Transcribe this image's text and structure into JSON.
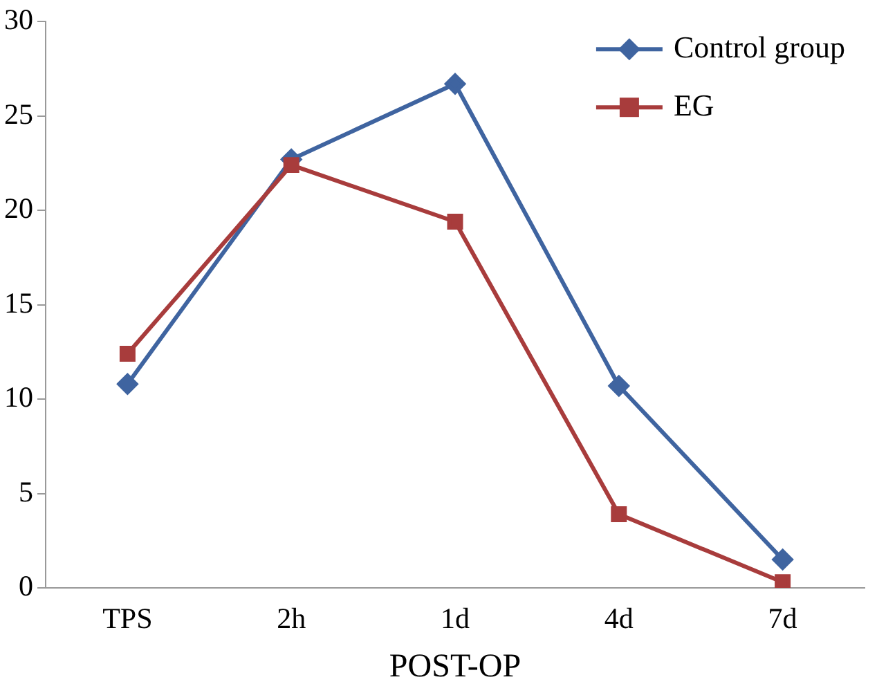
{
  "chart_data": {
    "type": "line",
    "xlabel": "POST-OP",
    "categories": [
      "TPS",
      "2h",
      "1d",
      "4d",
      "7d"
    ],
    "series": [
      {
        "name": "Control group",
        "color": "#3f64a0",
        "marker": "diamond",
        "values": [
          10.8,
          22.7,
          26.7,
          10.7,
          1.5
        ]
      },
      {
        "name": "EG",
        "color": "#a83c3c",
        "marker": "square",
        "values": [
          12.4,
          22.4,
          19.4,
          3.9,
          0.3
        ]
      }
    ],
    "ylim": [
      0,
      30
    ],
    "yticks": [
      0,
      5,
      10,
      15,
      20,
      25,
      30
    ],
    "grid": false,
    "legend": "top right",
    "line_style": "solid"
  }
}
